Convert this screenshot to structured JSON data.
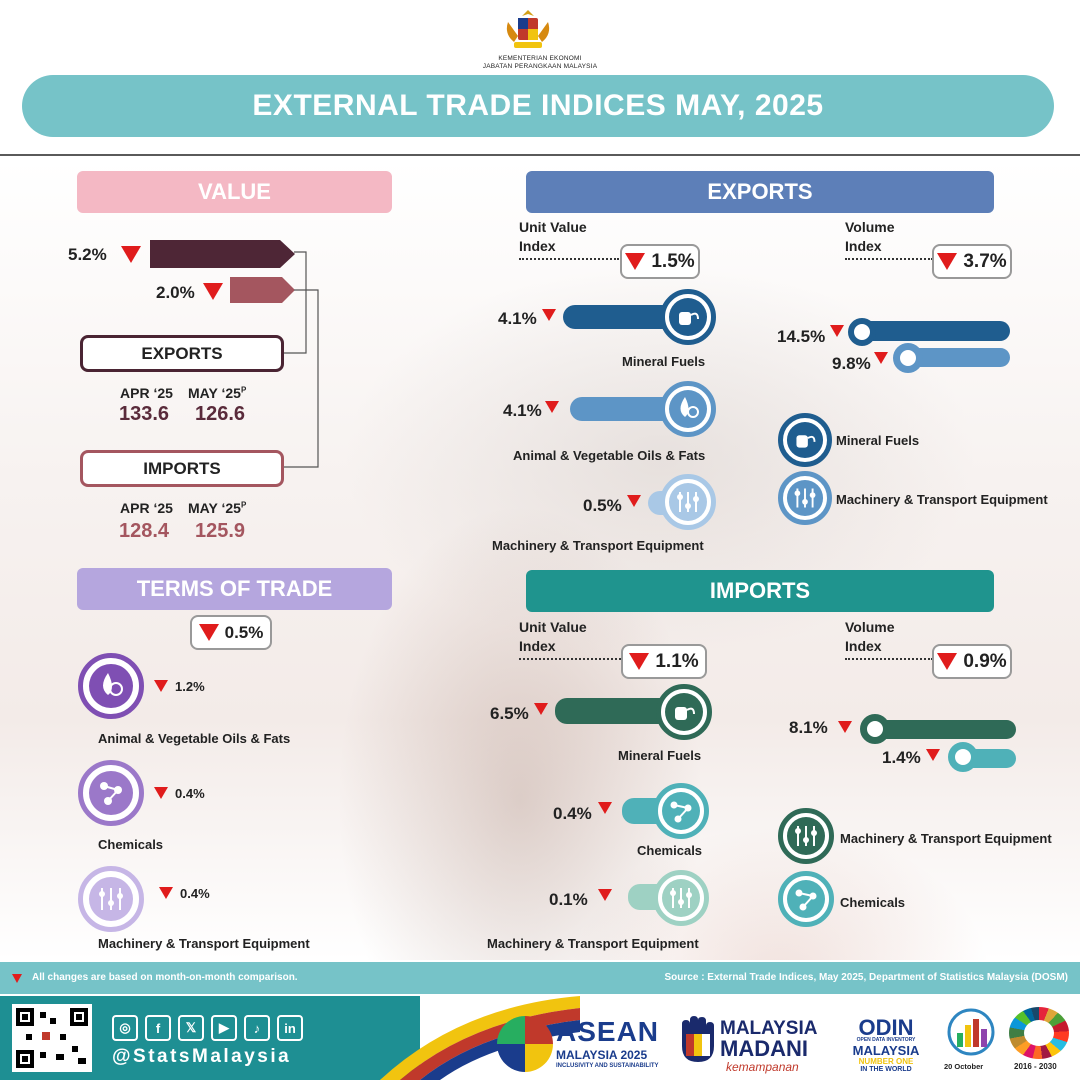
{
  "header": {
    "ministry_line1": "KEMENTERIAN EKONOMI",
    "ministry_line2": "JABATAN PERANGKAAN MALAYSIA",
    "title": "EXTERNAL TRADE INDICES MAY,  2025"
  },
  "value": {
    "heading": "VALUE",
    "exports_change": "5.2%",
    "imports_change": "2.0%",
    "exports_label": "EXPORTS",
    "imports_label": "IMPORTS",
    "exports_periods": [
      "APR ‘25",
      "MAY ‘25"
    ],
    "exports_values": [
      "133.6",
      "126.6"
    ],
    "imports_periods": [
      "APR ‘25",
      "MAY ‘25"
    ],
    "imports_values": [
      "128.4",
      "125.9"
    ],
    "provisional_mark": "P"
  },
  "terms_of_trade": {
    "heading": "TERMS OF TRADE",
    "overall": "0.5%",
    "items": [
      {
        "label": "Animal & Vegetable Oils & Fats",
        "change": "1.2%",
        "icon": "oil-drop-icon"
      },
      {
        "label": "Chemicals",
        "change": "0.4%",
        "icon": "chemicals-icon"
      },
      {
        "label": "Machinery & Transport Equipment",
        "change": "0.4%",
        "icon": "machinery-icon"
      }
    ]
  },
  "exports": {
    "heading": "EXPORTS",
    "unit_value_label_1": "Unit Value",
    "unit_value_label_2": "Index",
    "unit_value": "1.5%",
    "volume_label_1": "Volume",
    "volume_label_2": "Index",
    "volume": "3.7%",
    "unit_items": [
      {
        "label": "Mineral Fuels",
        "change": "4.1%",
        "fill": 1.0
      },
      {
        "label": "Animal & Vegetable Oils & Fats",
        "change": "4.1%",
        "fill": 1.0
      },
      {
        "label": "Machinery & Transport Equipment",
        "change": "0.5%",
        "fill": 0.12
      }
    ],
    "volume_items": [
      {
        "label": "Mineral Fuels",
        "change": "14.5%",
        "fill": 1.0
      },
      {
        "label": "Machinery & Transport Equipment",
        "change": "9.8%",
        "fill": 0.68
      }
    ]
  },
  "imports": {
    "heading": "IMPORTS",
    "unit_value_label_1": "Unit Value",
    "unit_value_label_2": "Index",
    "unit_value": "1.1%",
    "volume_label_1": "Volume",
    "volume_label_2": "Index",
    "volume": "0.9%",
    "unit_items": [
      {
        "label": "Mineral Fuels",
        "change": "6.5%",
        "fill": 1.0
      },
      {
        "label": "Chemicals",
        "change": "0.4%",
        "fill": 0.1
      },
      {
        "label": "Machinery & Transport Equipment",
        "change": "0.1%",
        "fill": 0.05
      }
    ],
    "volume_items": [
      {
        "label": "Machinery & Transport Equipment",
        "change": "8.1%",
        "fill": 1.0
      },
      {
        "label": "Chemicals",
        "change": "1.4%",
        "fill": 0.17
      }
    ]
  },
  "footer": {
    "note": "All changes are based on month-on-month comparison.",
    "source": "Source : External Trade Indices, May 2025, Department of Statistics Malaysia (DOSM)",
    "handle": "@StatsMalaysia",
    "asean_line1": "ASEAN",
    "asean_line2": "MALAYSIA 2025",
    "asean_line3": "INCLUSIVITY AND SUSTAINABILITY",
    "madani_line1": "MALAYSIA",
    "madani_line2": "MADANI",
    "madani_line3": "kemampanan",
    "odin_line1": "ODIN",
    "odin_line2": "OPEN DATA INVENTORY",
    "odin_line3": "MALAYSIA",
    "odin_line4": "NUMBER ONE",
    "odin_line5": "IN THE WORLD",
    "wsd_date": "20 October",
    "sdg_years": "2016 - 2030"
  },
  "colors": {
    "teal_title": "#76c3c8",
    "export_blue": "#5d7fb8",
    "import_teal": "#1f948e",
    "value_pink": "#f4b8c4",
    "tot_purple": "#b5a6de",
    "down_red": "#e01c1c"
  }
}
